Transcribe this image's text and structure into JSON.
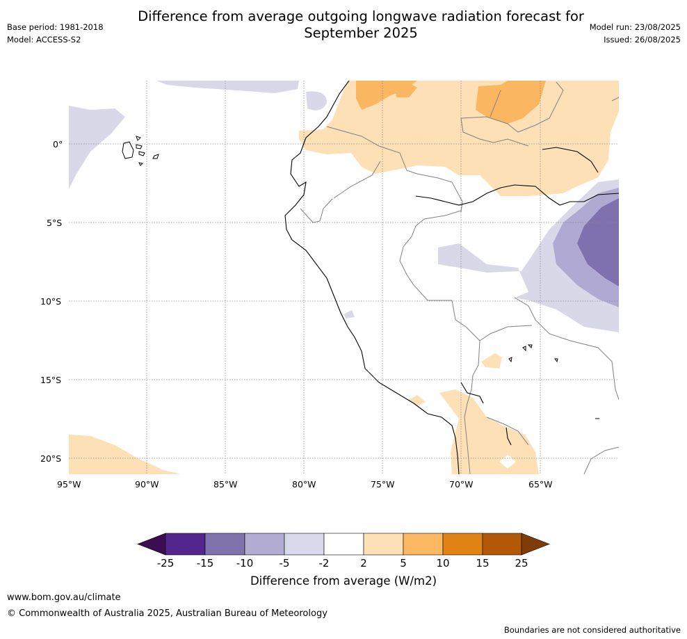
{
  "header": {
    "title_line1": "Difference from average outgoing longwave radiation forecast for",
    "title_line2": "September 2025",
    "base_period": "Base period: 1981-2018",
    "model": "Model: ACCESS-S2",
    "model_run": "Model run: 23/08/2025",
    "issued": "Issued: 26/08/2025"
  },
  "map": {
    "lon_labels": [
      "95°W",
      "90°W",
      "85°W",
      "80°W",
      "75°W",
      "70°W",
      "65°W"
    ],
    "lat_labels": [
      "0°",
      "5°S",
      "10°S",
      "15°S",
      "20°S"
    ],
    "region_color_key": {
      "white": "#ffffff",
      "neg_2_5": "#d8d8e9",
      "neg_5_10": "#b0a9d1",
      "neg_10_15": "#7f71ad",
      "pos_2_5": "#fde0b6",
      "pos_5_10": "#fbb662"
    }
  },
  "colorbar": {
    "title": "Difference from average (W/m2)",
    "ticks": [
      "-25",
      "-15",
      "-10",
      "-5",
      "-2",
      "2",
      "5",
      "10",
      "15",
      "25"
    ],
    "colors": [
      "#3b0d53",
      "#54278f",
      "#8073ac",
      "#b2abd2",
      "#d8daeb",
      "#ffffff",
      "#fee0b6",
      "#fdb863",
      "#e08214",
      "#b35806",
      "#7f3b08"
    ]
  },
  "footer": {
    "url": "www.bom.gov.au/climate",
    "copyright": "© Commonwealth of Australia 2025, Australian Bureau of Meteorology",
    "disclaimer": "Boundaries are not considered authoritative"
  }
}
